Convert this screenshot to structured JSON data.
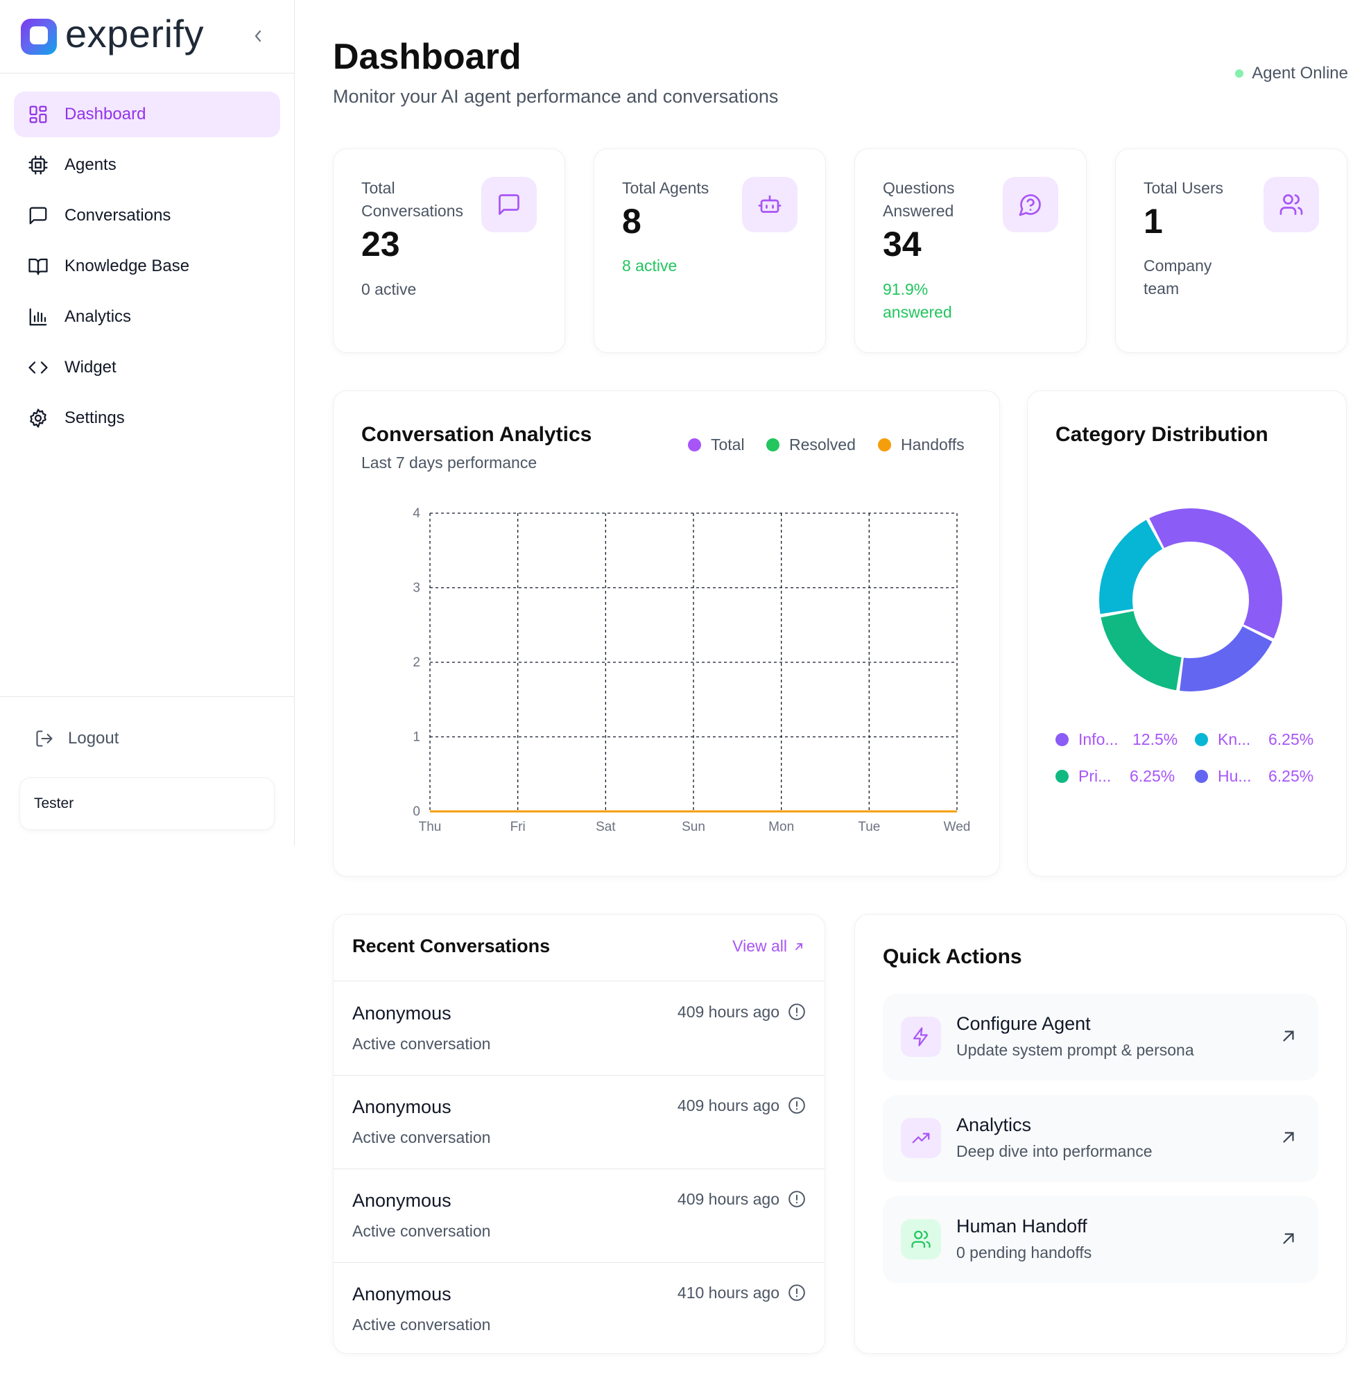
{
  "brand": {
    "name": "experify"
  },
  "sidebar": {
    "items": [
      {
        "label": "Dashboard",
        "icon": "layout-dashboard-icon",
        "active": true
      },
      {
        "label": "Agents",
        "icon": "cpu-icon"
      },
      {
        "label": "Conversations",
        "icon": "message-square-icon"
      },
      {
        "label": "Knowledge Base",
        "icon": "book-open-icon"
      },
      {
        "label": "Analytics",
        "icon": "bar-chart-icon"
      },
      {
        "label": "Widget",
        "icon": "code-icon"
      },
      {
        "label": "Settings",
        "icon": "gear-icon"
      }
    ],
    "logout_label": "Logout",
    "user_name": "Tester"
  },
  "header": {
    "title": "Dashboard",
    "subtitle": "Monitor your AI agent performance and conversations",
    "status": "Agent Online",
    "status_color": "#86efac"
  },
  "stats": [
    {
      "label": "Total Conversations",
      "value": "23",
      "sub": "0 active",
      "sub_color": "gray",
      "icon": "message-square-icon"
    },
    {
      "label": "Total Agents",
      "value": "8",
      "sub": "8 active",
      "sub_color": "green",
      "icon": "bot-icon"
    },
    {
      "label": "Questions Answered",
      "value": "34",
      "sub": "91.9% answered",
      "sub_color": "green",
      "icon": "help-message-icon"
    },
    {
      "label": "Total Users",
      "value": "1",
      "sub": "Company team",
      "sub_color": "gray",
      "icon": "users-icon"
    }
  ],
  "analytics": {
    "title": "Conversation Analytics",
    "subtitle": "Last 7 days performance",
    "legend": [
      {
        "label": "Total",
        "color": "#a855f7"
      },
      {
        "label": "Resolved",
        "color": "#22c55e"
      },
      {
        "label": "Handoffs",
        "color": "#f59e0b"
      }
    ]
  },
  "chart_data": [
    {
      "type": "line",
      "title": "Conversation Analytics",
      "x": [
        "Thu",
        "Fri",
        "Sat",
        "Sun",
        "Mon",
        "Tue",
        "Wed"
      ],
      "series": [
        {
          "name": "Total",
          "color": "#a855f7",
          "values": [
            0,
            0,
            0,
            0,
            0,
            0,
            0
          ]
        },
        {
          "name": "Resolved",
          "color": "#22c55e",
          "values": [
            0,
            0,
            0,
            0,
            0,
            0,
            0
          ]
        },
        {
          "name": "Handoffs",
          "color": "#f59e0b",
          "values": [
            0,
            0,
            0,
            0,
            0,
            0,
            0
          ]
        }
      ],
      "yticks": [
        "0",
        "1",
        "2",
        "3",
        "4"
      ],
      "ylim": [
        0,
        4
      ],
      "grid": true,
      "legend": "top-right"
    },
    {
      "type": "pie",
      "title": "Category Distribution",
      "slices": [
        {
          "label": "Info...",
          "value": 12.5,
          "display": "12.5%",
          "color": "#8b5cf6"
        },
        {
          "label": "Hu...",
          "value": 6.25,
          "display": "6.25%",
          "color": "#6366f1"
        },
        {
          "label": "Pri...",
          "value": 6.25,
          "display": "6.25%",
          "color": "#10b981"
        },
        {
          "label": "Kn...",
          "value": 6.25,
          "display": "6.25%",
          "color": "#06b6d4"
        }
      ],
      "legend": "bottom"
    }
  ],
  "category": {
    "title": "Category Distribution",
    "legend": [
      {
        "label": "Info...",
        "value": "12.5%",
        "color": "#8b5cf6"
      },
      {
        "label": "Kn...",
        "value": "6.25%",
        "color": "#06b6d4"
      },
      {
        "label": "Pri...",
        "value": "6.25%",
        "color": "#10b981"
      },
      {
        "label": "Hu...",
        "value": "6.25%",
        "color": "#6366f1"
      }
    ]
  },
  "recent": {
    "title": "Recent Conversations",
    "view_all": "View all",
    "items": [
      {
        "name": "Anonymous",
        "status": "Active conversation",
        "time": "409 hours ago"
      },
      {
        "name": "Anonymous",
        "status": "Active conversation",
        "time": "409 hours ago"
      },
      {
        "name": "Anonymous",
        "status": "Active conversation",
        "time": "409 hours ago"
      },
      {
        "name": "Anonymous",
        "status": "Active conversation",
        "time": "410 hours ago"
      }
    ]
  },
  "quick_actions": {
    "title": "Quick Actions",
    "items": [
      {
        "title": "Configure Agent",
        "subtitle": "Update system prompt & persona",
        "icon": "lightning-icon",
        "color": "#a855f7",
        "bg": "#f3e8ff"
      },
      {
        "title": "Analytics",
        "subtitle": "Deep dive into performance",
        "icon": "trending-up-icon",
        "color": "#a855f7",
        "bg": "#f3e8ff"
      },
      {
        "title": "Human Handoff",
        "subtitle": "0 pending handoffs",
        "icon": "users-icon",
        "color": "#22c55e",
        "bg": "#dcfce7"
      }
    ]
  },
  "colors": {
    "accent": "#a855f7",
    "green": "#22c55e",
    "orange": "#f59e0b"
  }
}
